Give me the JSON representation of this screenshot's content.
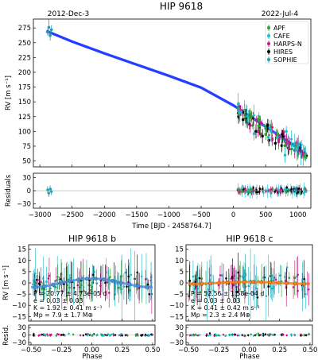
{
  "title": "HIP 9618",
  "date_start": "2012-Dec-3",
  "date_end": "2022-Jul-4",
  "colors": {
    "APF": "#2ca02c",
    "CAFE": "#17becf",
    "HARPS-N": "#c71585",
    "HIRES": "#000000",
    "SOPHIE": "#1f9fb4",
    "model_top": "#1f3cff",
    "model_b": "#4a90e2",
    "model_c": "#ff7f0e"
  },
  "chart_data": [
    {
      "type": "scatter",
      "panel": "rv-timeseries",
      "title": "HIP 9618",
      "ylabel": "RV [m s⁻¹]",
      "xlim": [
        -3100,
        1200
      ],
      "ylim": [
        40,
        290
      ],
      "x_ticks": [
        -3000,
        -2500,
        -2000,
        -1500,
        -1000,
        -500,
        0,
        500,
        1000
      ],
      "y_ticks": [
        50,
        75,
        100,
        125,
        150,
        175,
        200,
        225,
        250,
        275
      ],
      "legend": {
        "placement": "top-right",
        "entries": [
          "APF",
          "CAFE",
          "HARPS-N",
          "HIRES",
          "SOPHIE"
        ]
      },
      "model": {
        "name": "Keplerian + trend",
        "x": [
          -2900,
          -2500,
          -2000,
          -1500,
          -1000,
          -500,
          0,
          500,
          1000,
          1130
        ],
        "y": [
          270,
          252,
          232,
          213,
          194,
          174,
          144,
          108,
          72,
          60
        ]
      },
      "series": [
        {
          "name": "SOPHIE",
          "x": [
            -2880,
            -2860,
            -2840,
            -2820
          ],
          "y": [
            268,
            276,
            262,
            272
          ]
        },
        {
          "name": "HIRES",
          "x": [
            80,
            150,
            250,
            350,
            450,
            550,
            650,
            750,
            850,
            950,
            1050
          ],
          "y": [
            125,
            120,
            112,
            100,
            92,
            85,
            80,
            76,
            72,
            68,
            64
          ]
        },
        {
          "name": "APF",
          "x": [
            100,
            200,
            300,
            400,
            500,
            600,
            700,
            800,
            900,
            1000,
            1100
          ],
          "y": [
            128,
            118,
            110,
            103,
            95,
            88,
            82,
            76,
            70,
            66,
            62
          ]
        },
        {
          "name": "CAFE",
          "x": [
            320,
            540,
            760,
            800,
            820
          ],
          "y": [
            96,
            90,
            86,
            60,
            100
          ]
        },
        {
          "name": "HARPS-N",
          "x": [
            220,
            260,
            380,
            420,
            600,
            700,
            860,
            950
          ],
          "y": [
            114,
            110,
            100,
            96,
            86,
            84,
            70,
            68
          ]
        }
      ]
    },
    {
      "type": "scatter",
      "panel": "residuals-time",
      "xlabel": "Time [BJD - 2458764.7]",
      "ylabel": "Residuals",
      "xlim": [
        -3100,
        1200
      ],
      "ylim": [
        -40,
        40
      ],
      "y_ticks": [
        -30,
        0,
        30
      ]
    },
    {
      "type": "scatter",
      "panel": "phase-b",
      "title": "HIP 9618 b",
      "ylabel": "RV [m s⁻¹]",
      "xlim": [
        -0.52,
        0.52
      ],
      "ylim": [
        -17,
        17
      ],
      "x_ticks": [
        -0.5,
        -0.25,
        0.0,
        0.25,
        0.5
      ],
      "y_ticks": [
        -15,
        -10,
        -5,
        0,
        5,
        10,
        15
      ],
      "annotations": [
        "P = 20.77 ± 4.73e-05 d",
        "e = 0.03 ± 0.03",
        "K = 1.92 ± 0.41 m s⁻¹",
        "Mp = 7.9 ± 1.7 M⊕"
      ],
      "model": {
        "K": 1.92
      }
    },
    {
      "type": "scatter",
      "panel": "phase-c",
      "title": "HIP 9618 c",
      "xlim": [
        -0.52,
        0.52
      ],
      "ylim": [
        -17,
        17
      ],
      "x_ticks": [
        -0.5,
        -0.25,
        0.0,
        0.25,
        0.5
      ],
      "y_ticks": [
        -15,
        -10,
        -5,
        0,
        5,
        10,
        15
      ],
      "annotations": [
        "P = 52.56 ± 1.58e-04 d",
        "e = 0.03 ± 0.03",
        "K = 0.41 ± 0.42 m s⁻¹",
        "Mp = 2.3 ± 2.4 M⊕"
      ],
      "model": {
        "K": 0.41
      }
    },
    {
      "type": "scatter",
      "panel": "phase-resid",
      "xlabel": "Phase",
      "ylabel": "Resid.",
      "xlim": [
        -0.52,
        0.52
      ],
      "ylim": [
        -40,
        40
      ],
      "y_ticks": [
        -30,
        0,
        30
      ]
    }
  ]
}
